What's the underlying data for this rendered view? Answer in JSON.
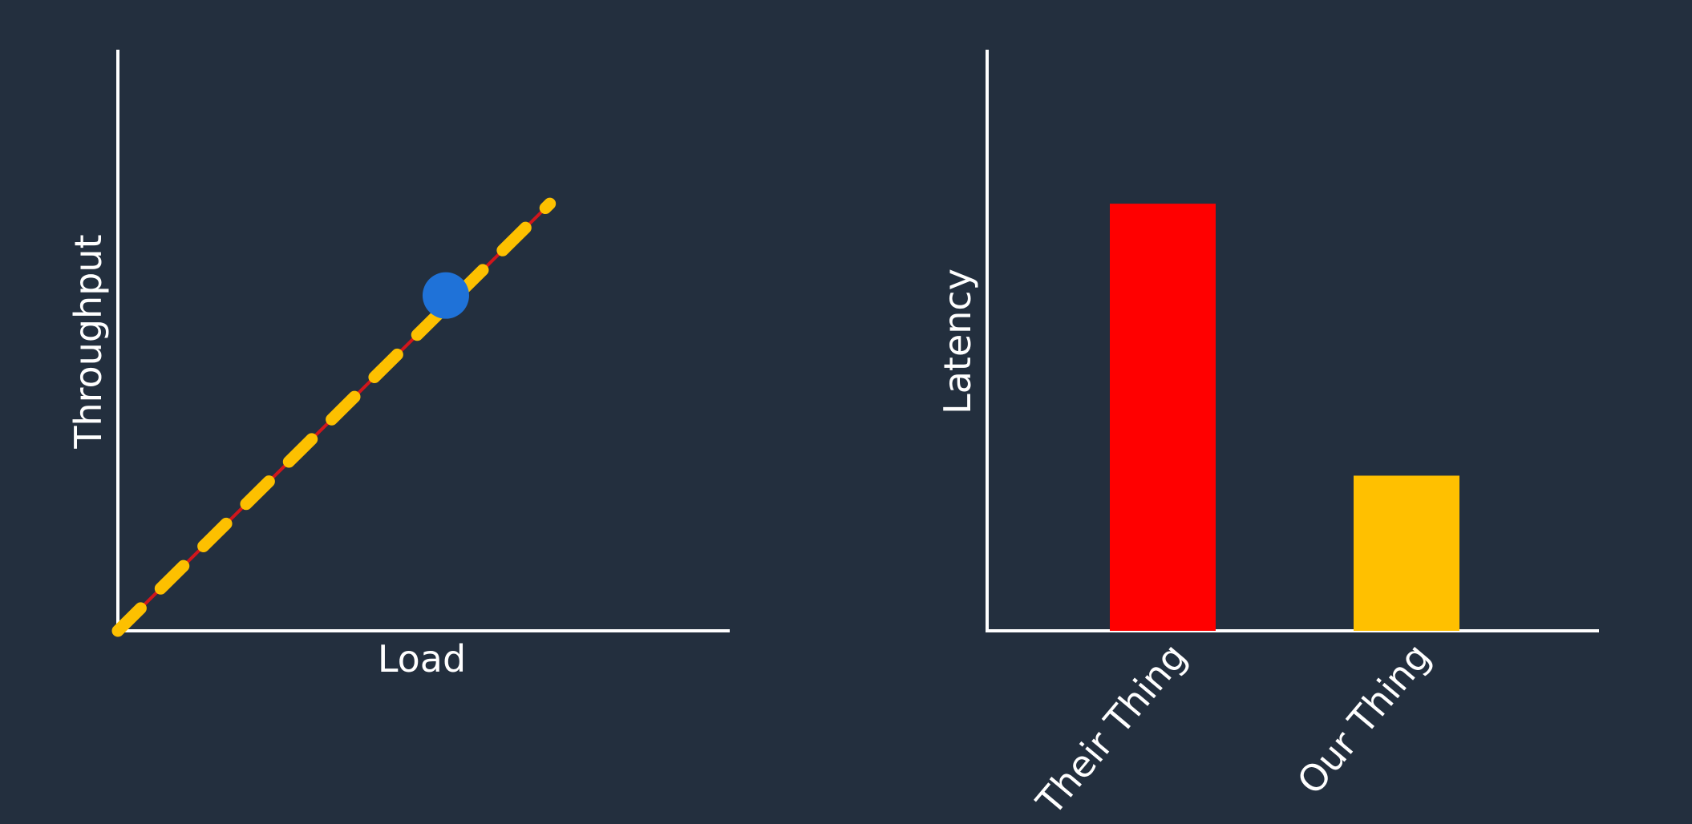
{
  "chart_data": [
    {
      "type": "line",
      "title": "",
      "xlabel": "Load",
      "ylabel": "Throughput",
      "xlim": [
        0,
        100
      ],
      "ylim": [
        0,
        100
      ],
      "grid": false,
      "series": [
        {
          "name": "throughput-line",
          "x": [
            0,
            70.6
          ],
          "values": [
            0,
            73.5
          ],
          "color": "#d0161c",
          "dash_color": "#fdc000"
        }
      ],
      "markers": [
        {
          "name": "operating-point",
          "x": 53.6,
          "y": 57.7,
          "color": "#1f72d8"
        }
      ]
    },
    {
      "type": "bar",
      "title": "",
      "xlabel": "",
      "ylabel": "Latency",
      "ylim": [
        0,
        100
      ],
      "grid": false,
      "categories": [
        "Their Thing",
        "Our Thing"
      ],
      "values": [
        73.5,
        26.7
      ],
      "colors": [
        "#ff0000",
        "#ffc000"
      ]
    }
  ],
  "theme": {
    "background": "#232f3e",
    "axis_color": "#ffffff"
  }
}
